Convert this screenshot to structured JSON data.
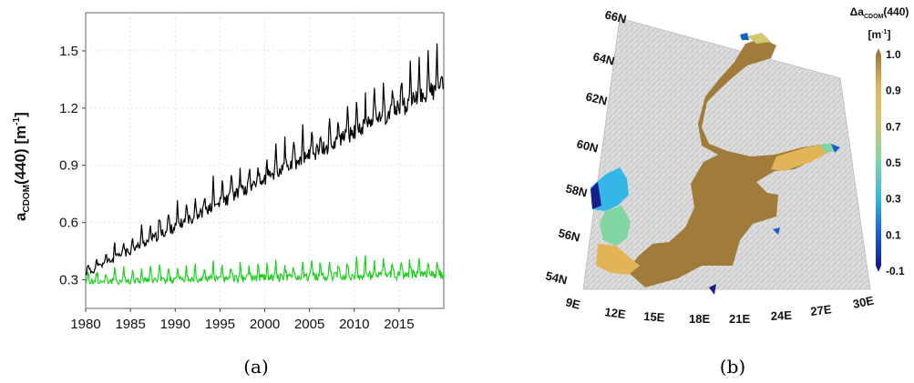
{
  "panels": {
    "a_caption": "(a)",
    "b_caption": "(b)"
  },
  "chart_data": [
    {
      "type": "line",
      "ylabel_main": "a",
      "ylabel_sub": "CDOM",
      "ylabel_rest": "(440) [m",
      "ylabel_sup": "-1",
      "ylabel_end": "]",
      "xlim": [
        1980,
        2020
      ],
      "ylim": [
        0.15,
        1.7
      ],
      "x_ticks": [
        "1980",
        "1985",
        "1990",
        "1995",
        "2000",
        "2005",
        "2010",
        "2015"
      ],
      "y_ticks": [
        "0.3",
        "0.6",
        "0.9",
        "1.2",
        "1.5"
      ],
      "grid": true,
      "series": [
        {
          "color": "#000000",
          "start": 1980,
          "trend_start": 0.33,
          "trend_end": 1.32,
          "amp_start": 0.05,
          "amp_end": 0.15
        },
        {
          "color": "#1ed01e",
          "start": 1980,
          "trend_start": 0.29,
          "trend_end": 0.33,
          "amp_start": 0.05,
          "amp_end": 0.07
        }
      ]
    },
    {
      "type": "heatmap",
      "lat_labels": [
        "66N",
        "64N",
        "62N",
        "60N",
        "58N",
        "56N",
        "54N"
      ],
      "lon_labels": [
        "9E",
        "12E",
        "15E",
        "18E",
        "21E",
        "24E",
        "27E",
        "30E"
      ],
      "colorbar": {
        "title_prefix": "Δa",
        "title_sub": "CDOM",
        "title_suffix": "(440)",
        "unit": "[m",
        "unit_sup": "-1",
        "unit_end": "]",
        "ticks": [
          "1.0",
          "0.9",
          "0.7",
          "0.5",
          "0.3",
          "0.1",
          "-0.1"
        ],
        "colors": [
          "#a17b3a",
          "#e2b458",
          "#cfc870",
          "#7fd6a2",
          "#34b6e6",
          "#1460c8",
          "#141e8c"
        ]
      }
    }
  ]
}
